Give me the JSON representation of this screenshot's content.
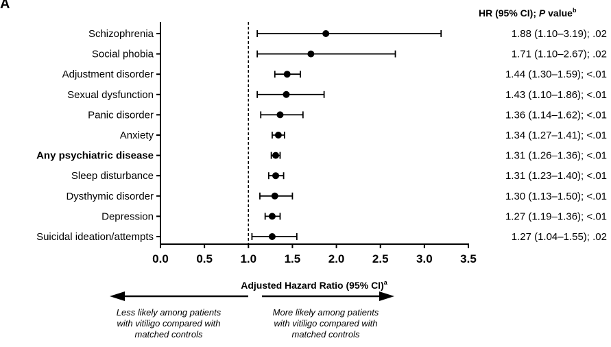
{
  "panel_label": "A",
  "chart_data": {
    "type": "forest",
    "column_header": {
      "main": "HR (95% CI); ",
      "italic": "P",
      "rest": " value",
      "superscript": "b"
    },
    "xlabel": "Adjusted Hazard Ratio (95% CI)",
    "xlabel_superscript": "a",
    "xlim": [
      0.0,
      3.5
    ],
    "xticks": [
      "0.0",
      "0.5",
      "1.0",
      "1.5",
      "2.0",
      "2.5",
      "3.0",
      "3.5"
    ],
    "reference_line": 1.0,
    "rows": [
      {
        "label": "Schizophrenia",
        "hr": 1.88,
        "lo": 1.1,
        "hi": 3.19,
        "text": "1.88 (1.10–3.19); .02",
        "bold": false
      },
      {
        "label": "Social phobia",
        "hr": 1.71,
        "lo": 1.1,
        "hi": 2.67,
        "text": "1.71 (1.10–2.67); .02",
        "bold": false
      },
      {
        "label": "Adjustment disorder",
        "hr": 1.44,
        "lo": 1.3,
        "hi": 1.59,
        "text": "1.44 (1.30–1.59); <.01",
        "bold": false
      },
      {
        "label": "Sexual dysfunction",
        "hr": 1.43,
        "lo": 1.1,
        "hi": 1.86,
        "text": "1.43 (1.10–1.86); <.01",
        "bold": false
      },
      {
        "label": "Panic disorder",
        "hr": 1.36,
        "lo": 1.14,
        "hi": 1.62,
        "text": "1.36 (1.14–1.62); <.01",
        "bold": false
      },
      {
        "label": "Anxiety",
        "hr": 1.34,
        "lo": 1.27,
        "hi": 1.41,
        "text": "1.34 (1.27–1.41); <.01",
        "bold": false
      },
      {
        "label": "Any psychiatric disease",
        "hr": 1.31,
        "lo": 1.26,
        "hi": 1.36,
        "text": "1.31 (1.26–1.36); <.01",
        "bold": true
      },
      {
        "label": "Sleep disturbance",
        "hr": 1.31,
        "lo": 1.23,
        "hi": 1.4,
        "text": "1.31 (1.23–1.40); <.01",
        "bold": false
      },
      {
        "label": "Dysthymic disorder",
        "hr": 1.3,
        "lo": 1.13,
        "hi": 1.5,
        "text": "1.30 (1.13–1.50); <.01",
        "bold": false
      },
      {
        "label": "Depression",
        "hr": 1.27,
        "lo": 1.19,
        "hi": 1.36,
        "text": "1.27 (1.19–1.36); <.01",
        "bold": false
      },
      {
        "label": "Suicidal ideation/attempts",
        "hr": 1.27,
        "lo": 1.04,
        "hi": 1.55,
        "text": "1.27 (1.04–1.55); .02",
        "bold": false
      }
    ],
    "left_caption": [
      "Less likely among patients",
      "with vitiligo compared with",
      "matched controls"
    ],
    "right_caption": [
      "More likely among patients",
      "with vitiligo compared with",
      "matched controls"
    ]
  }
}
